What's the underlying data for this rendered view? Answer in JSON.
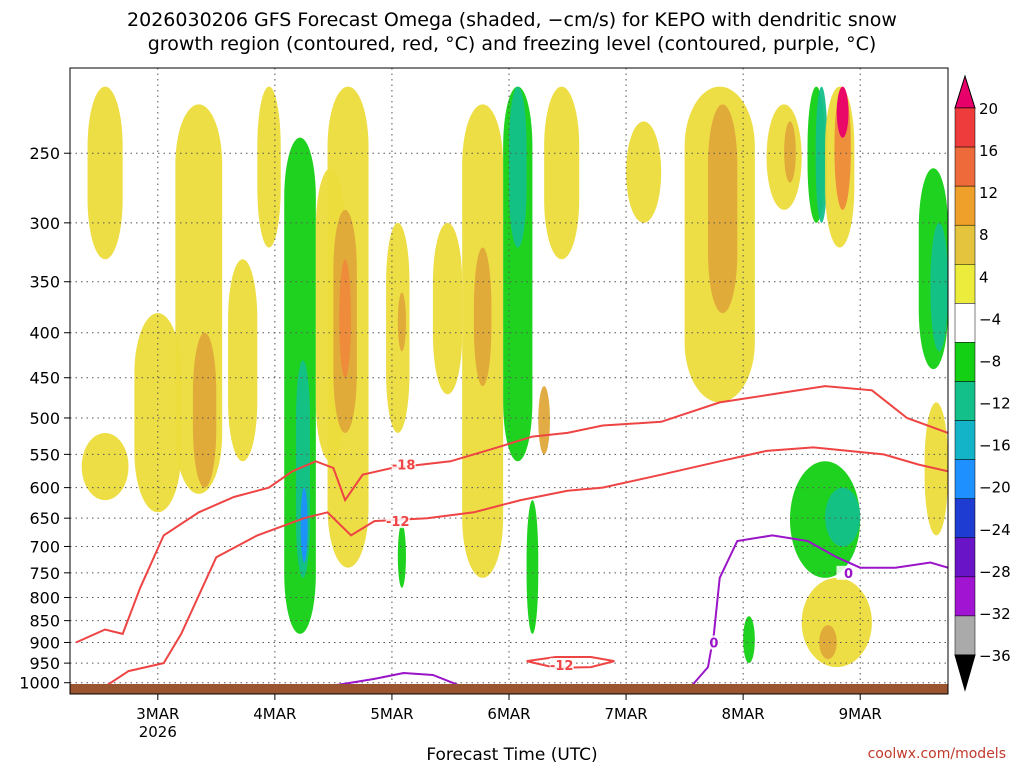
{
  "title": "2026030206 GFS Forecast Omega (shaded, −cm/s) for KEPO with dendritic snow\ngrowth region (contoured, red, °C) and freezing level (contoured, purple, °C)",
  "credit": "coolwx.com/models",
  "chart_data": {
    "type": "heatmap",
    "title": "2026030206 GFS Forecast Omega (shaded, −cm/s) for KEPO with dendritic snow growth region (contoured, red, °C) and freezing level (contoured, purple, °C)",
    "xlabel": "Forecast Time (UTC)",
    "ylabel": "",
    "x_ticks": [
      {
        "label": "3MAR",
        "sub": "2026",
        "day": 3
      },
      {
        "label": "4MAR",
        "sub": "",
        "day": 4
      },
      {
        "label": "5MAR",
        "sub": "",
        "day": 5
      },
      {
        "label": "6MAR",
        "sub": "",
        "day": 6
      },
      {
        "label": "7MAR",
        "sub": "",
        "day": 7
      },
      {
        "label": "8MAR",
        "sub": "",
        "day": 8
      },
      {
        "label": "9MAR",
        "sub": "",
        "day": 9
      }
    ],
    "xlim": [
      2.25,
      9.75
    ],
    "y_ticks": [
      250,
      300,
      350,
      400,
      450,
      500,
      550,
      600,
      650,
      700,
      750,
      800,
      850,
      900,
      950,
      1000
    ],
    "ylim": [
      200,
      1030
    ],
    "y_scale": "log-pressure",
    "grid": true,
    "colorbar": {
      "labels": [
        "20",
        "16",
        "12",
        "8",
        "4",
        "−4",
        "−8",
        "−12",
        "−16",
        "−20",
        "−24",
        "−28",
        "−32",
        "−36"
      ],
      "colors": [
        "#e8006a",
        "#ee3b3b",
        "#ee6a3b",
        "#eea02a",
        "#e4c43c",
        "#ecec3c",
        "#ffffff",
        "#14d014",
        "#14c08a",
        "#14b4c8",
        "#1e90ff",
        "#1e3cd2",
        "#6a14c8",
        "#a014d2",
        "#aaaaaa",
        "#000000"
      ]
    },
    "omega_regions": [
      {
        "x": [
          2.35,
          2.75
        ],
        "p": [
          520,
          620
        ],
        "v": 4
      },
      {
        "x": [
          2.4,
          2.7
        ],
        "p": [
          210,
          330
        ],
        "v": 4
      },
      {
        "x": [
          2.8,
          3.2
        ],
        "p": [
          380,
          640
        ],
        "v": 4
      },
      {
        "x": [
          3.15,
          3.55
        ],
        "p": [
          220,
          610
        ],
        "v": 4
      },
      {
        "x": [
          3.3,
          3.5
        ],
        "p": [
          400,
          600
        ],
        "v": 8
      },
      {
        "x": [
          3.6,
          3.85
        ],
        "p": [
          330,
          560
        ],
        "v": 4
      },
      {
        "x": [
          3.85,
          4.05
        ],
        "p": [
          210,
          320
        ],
        "v": 4
      },
      {
        "x": [
          4.08,
          4.35
        ],
        "p": [
          240,
          880
        ],
        "v": -8
      },
      {
        "x": [
          4.18,
          4.3
        ],
        "p": [
          430,
          760
        ],
        "v": -12
      },
      {
        "x": [
          4.22,
          4.28
        ],
        "p": [
          600,
          730
        ],
        "v": -20
      },
      {
        "x": [
          4.35,
          4.6
        ],
        "p": [
          260,
          560
        ],
        "v": 4
      },
      {
        "x": [
          4.45,
          4.8
        ],
        "p": [
          210,
          740
        ],
        "v": 4
      },
      {
        "x": [
          4.5,
          4.7
        ],
        "p": [
          290,
          520
        ],
        "v": 8
      },
      {
        "x": [
          4.55,
          4.65
        ],
        "p": [
          330,
          450
        ],
        "v": 12
      },
      {
        "x": [
          4.95,
          5.15
        ],
        "p": [
          300,
          520
        ],
        "v": 4
      },
      {
        "x": [
          5.05,
          5.12
        ],
        "p": [
          360,
          420
        ],
        "v": 8
      },
      {
        "x": [
          5.05,
          5.12
        ],
        "p": [
          660,
          780
        ],
        "v": -8
      },
      {
        "x": [
          5.35,
          5.6
        ],
        "p": [
          300,
          470
        ],
        "v": 4
      },
      {
        "x": [
          5.6,
          5.95
        ],
        "p": [
          220,
          760
        ],
        "v": 4
      },
      {
        "x": [
          5.7,
          5.85
        ],
        "p": [
          320,
          460
        ],
        "v": 8
      },
      {
        "x": [
          5.95,
          6.2
        ],
        "p": [
          210,
          560
        ],
        "v": -8
      },
      {
        "x": [
          6.0,
          6.15
        ],
        "p": [
          210,
          320
        ],
        "v": -12
      },
      {
        "x": [
          6.25,
          6.35
        ],
        "p": [
          460,
          550
        ],
        "v": 8
      },
      {
        "x": [
          6.3,
          6.6
        ],
        "p": [
          210,
          330
        ],
        "v": 4
      },
      {
        "x": [
          6.15,
          6.25
        ],
        "p": [
          620,
          880
        ],
        "v": -8
      },
      {
        "x": [
          7.0,
          7.3
        ],
        "p": [
          230,
          300
        ],
        "v": 4
      },
      {
        "x": [
          7.5,
          8.1
        ],
        "p": [
          210,
          480
        ],
        "v": 4
      },
      {
        "x": [
          7.7,
          7.95
        ],
        "p": [
          220,
          380
        ],
        "v": 8
      },
      {
        "x": [
          8.2,
          8.5
        ],
        "p": [
          220,
          290
        ],
        "v": 4
      },
      {
        "x": [
          8.35,
          8.45
        ],
        "p": [
          230,
          270
        ],
        "v": 8
      },
      {
        "x": [
          8.55,
          8.7
        ],
        "p": [
          210,
          300
        ],
        "v": -8
      },
      {
        "x": [
          8.62,
          8.72
        ],
        "p": [
          210,
          300
        ],
        "v": -12
      },
      {
        "x": [
          8.7,
          8.95
        ],
        "p": [
          210,
          320
        ],
        "v": 4
      },
      {
        "x": [
          8.78,
          8.92
        ],
        "p": [
          210,
          290
        ],
        "v": 12
      },
      {
        "x": [
          8.8,
          8.9
        ],
        "p": [
          210,
          240
        ],
        "v": 20
      },
      {
        "x": [
          8.4,
          9.0
        ],
        "p": [
          560,
          760
        ],
        "v": -8
      },
      {
        "x": [
          8.7,
          9.0
        ],
        "p": [
          600,
          700
        ],
        "v": -12
      },
      {
        "x": [
          8.5,
          9.1
        ],
        "p": [
          760,
          960
        ],
        "v": 4
      },
      {
        "x": [
          8.65,
          8.8
        ],
        "p": [
          860,
          940
        ],
        "v": 8
      },
      {
        "x": [
          8.0,
          8.1
        ],
        "p": [
          840,
          950
        ],
        "v": -8
      },
      {
        "x": [
          9.5,
          9.75
        ],
        "p": [
          260,
          440
        ],
        "v": -8
      },
      {
        "x": [
          9.6,
          9.75
        ],
        "p": [
          300,
          420
        ],
        "v": -12
      },
      {
        "x": [
          9.55,
          9.75
        ],
        "p": [
          480,
          680
        ],
        "v": 4
      }
    ],
    "contours": [
      {
        "label": "-18",
        "color": "#ee4444",
        "label_x": 5.1,
        "label_p": 565,
        "points": [
          [
            2.3,
            900
          ],
          [
            2.55,
            870
          ],
          [
            2.7,
            880
          ],
          [
            2.85,
            780
          ],
          [
            3.05,
            680
          ],
          [
            3.35,
            640
          ],
          [
            3.65,
            615
          ],
          [
            3.95,
            600
          ],
          [
            4.15,
            575
          ],
          [
            4.35,
            560
          ],
          [
            4.5,
            570
          ],
          [
            4.6,
            620
          ],
          [
            4.75,
            580
          ],
          [
            5.0,
            570
          ],
          [
            5.5,
            560
          ],
          [
            5.9,
            540
          ],
          [
            6.2,
            525
          ],
          [
            6.5,
            520
          ],
          [
            6.8,
            510
          ],
          [
            7.3,
            505
          ],
          [
            7.8,
            480
          ],
          [
            8.25,
            470
          ],
          [
            8.7,
            460
          ],
          [
            9.1,
            465
          ],
          [
            9.4,
            500
          ],
          [
            9.75,
            520
          ]
        ]
      },
      {
        "label": "-12",
        "color": "#ee4444",
        "label_x": 5.05,
        "label_p": 655,
        "points": [
          [
            2.55,
            1010
          ],
          [
            2.75,
            970
          ],
          [
            3.05,
            950
          ],
          [
            3.2,
            880
          ],
          [
            3.5,
            720
          ],
          [
            3.85,
            680
          ],
          [
            4.25,
            650
          ],
          [
            4.45,
            640
          ],
          [
            4.65,
            680
          ],
          [
            4.85,
            655
          ],
          [
            5.3,
            650
          ],
          [
            5.7,
            640
          ],
          [
            6.1,
            620
          ],
          [
            6.5,
            605
          ],
          [
            6.8,
            600
          ],
          [
            7.3,
            580
          ],
          [
            7.8,
            560
          ],
          [
            8.2,
            545
          ],
          [
            8.6,
            540
          ],
          [
            8.9,
            545
          ],
          [
            9.2,
            550
          ],
          [
            9.5,
            565
          ],
          [
            9.75,
            575
          ]
        ]
      },
      {
        "label": "-12",
        "color": "#ee4444",
        "label_x": 6.45,
        "label_p": 955,
        "points": [
          [
            6.15,
            945
          ],
          [
            6.4,
            935
          ],
          [
            6.7,
            935
          ],
          [
            6.9,
            945
          ],
          [
            6.7,
            960
          ],
          [
            6.4,
            962
          ],
          [
            6.15,
            945
          ]
        ]
      },
      {
        "label": "0",
        "color": "#9a14c8",
        "label_x": 8.9,
        "label_p": 750,
        "points": [
          [
            3.65,
            1030
          ],
          [
            3.95,
            1020
          ],
          [
            4.25,
            1015
          ],
          [
            4.55,
            1005
          ],
          [
            4.85,
            990
          ],
          [
            5.1,
            975
          ],
          [
            5.35,
            980
          ],
          [
            5.6,
            1010
          ],
          [
            5.85,
            1030
          ]
        ]
      },
      {
        "label": "0",
        "color": "#9a14c8",
        "label_x": 7.75,
        "label_p": 900,
        "points": [
          [
            7.5,
            1030
          ],
          [
            7.7,
            960
          ],
          [
            7.75,
            880
          ],
          [
            7.8,
            760
          ],
          [
            7.95,
            690
          ],
          [
            8.25,
            680
          ],
          [
            8.55,
            690
          ],
          [
            8.8,
            720
          ],
          [
            9.0,
            740
          ],
          [
            9.3,
            740
          ],
          [
            9.6,
            730
          ],
          [
            9.75,
            740
          ]
        ]
      }
    ]
  }
}
